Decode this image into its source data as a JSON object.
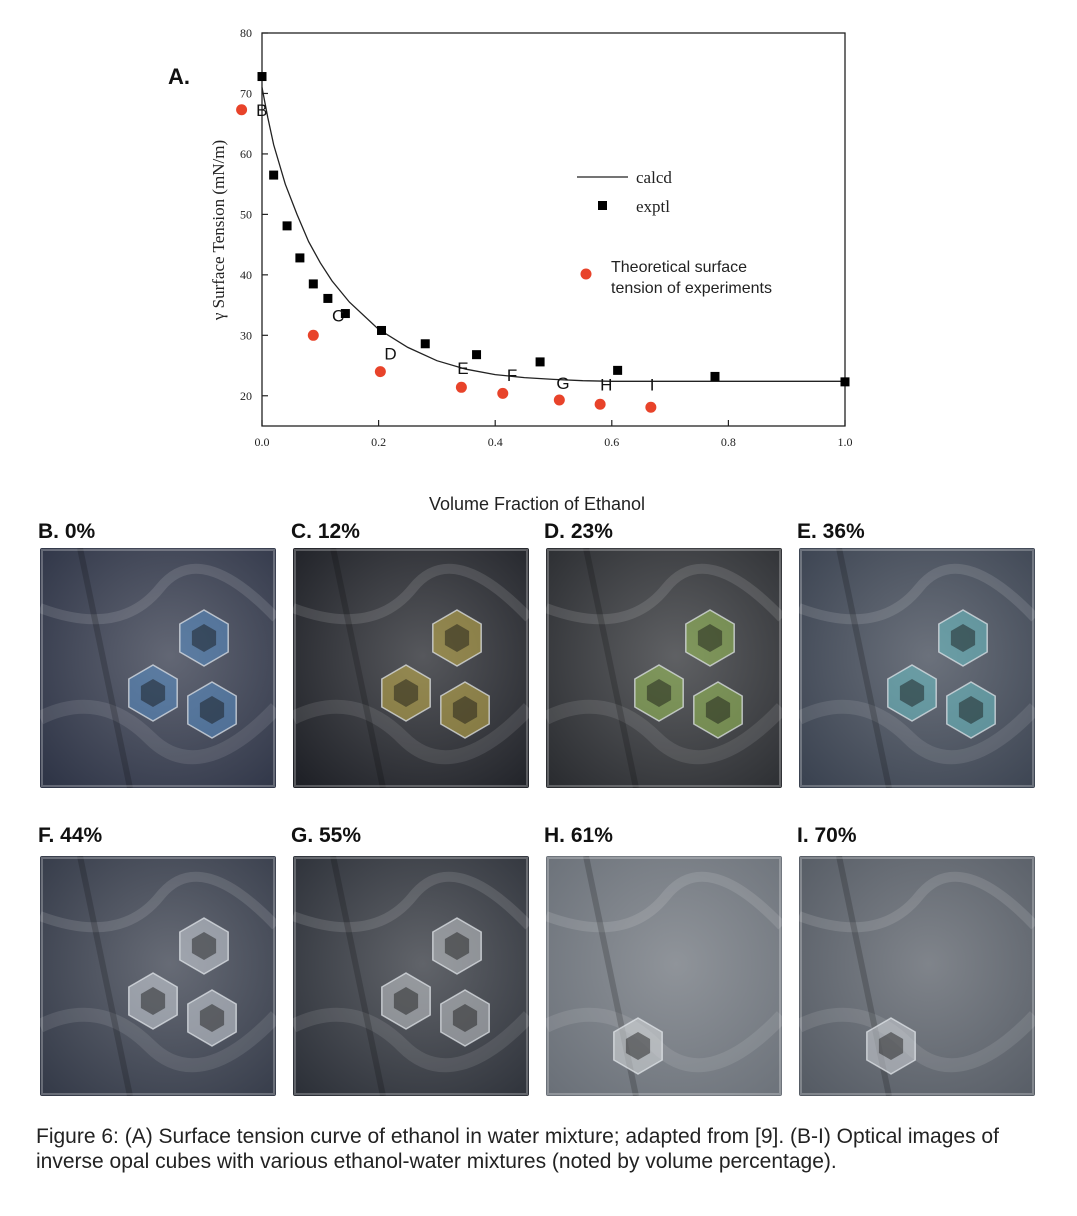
{
  "panel_a_label": "A.",
  "chart_data": {
    "type": "scatter",
    "xlabel": "Volume Fraction of Ethanol",
    "ylabel": "γ Surface Tension (mN/m)",
    "xlim": [
      0,
      1.0
    ],
    "ylim": [
      15,
      80
    ],
    "x_ticks": [
      "0.0",
      "0.2",
      "0.4",
      "0.6",
      "0.8",
      "1.0"
    ],
    "y_ticks": [
      "20",
      "30",
      "40",
      "50",
      "60",
      "70",
      "80"
    ],
    "grid": false,
    "legend_placement": "middle-right",
    "series": [
      {
        "name": "calcd",
        "kind": "line",
        "x": [
          0,
          0.01,
          0.02,
          0.04,
          0.06,
          0.08,
          0.1,
          0.12,
          0.15,
          0.2,
          0.25,
          0.3,
          0.35,
          0.4,
          0.45,
          0.5,
          0.55,
          0.6,
          0.7,
          0.8,
          0.9,
          1.0
        ],
        "y": [
          71.0,
          66.0,
          61.5,
          55.0,
          50.0,
          45.5,
          42.0,
          39.0,
          35.5,
          31.0,
          28.0,
          25.8,
          24.4,
          23.5,
          23.0,
          22.7,
          22.5,
          22.4,
          22.4,
          22.4,
          22.4,
          22.4
        ]
      },
      {
        "name": "exptl",
        "kind": "square",
        "color": "#000000",
        "x": [
          0.0,
          0.02,
          0.043,
          0.065,
          0.088,
          0.113,
          0.143,
          0.205,
          0.28,
          0.368,
          0.477,
          0.61,
          0.777,
          1.0
        ],
        "y": [
          72.8,
          56.5,
          48.1,
          42.8,
          38.5,
          36.1,
          33.6,
          30.8,
          28.6,
          26.8,
          25.6,
          24.2,
          23.2,
          22.3
        ]
      },
      {
        "name": "Theoretical surface tension of experiments",
        "kind": "circle",
        "color": "#e8432a",
        "x": [
          -0.035,
          0.088,
          0.203,
          0.342,
          0.413,
          0.51,
          0.58,
          0.667
        ],
        "y": [
          67.3,
          30.0,
          24.0,
          21.4,
          20.4,
          19.3,
          18.6,
          18.1
        ]
      }
    ],
    "point_labels": [
      {
        "text": "B",
        "x": -0.01,
        "y": 67.3
      },
      {
        "text": "C",
        "x": 0.12,
        "y": 33.3
      },
      {
        "text": "D",
        "x": 0.21,
        "y": 27.0
      },
      {
        "text": "E",
        "x": 0.335,
        "y": 24.6
      },
      {
        "text": "F",
        "x": 0.42,
        "y": 23.4
      },
      {
        "text": "G",
        "x": 0.505,
        "y": 22.1
      },
      {
        "text": "H",
        "x": 0.58,
        "y": 21.9
      },
      {
        "text": "I",
        "x": 0.665,
        "y": 21.9
      }
    ],
    "legend": {
      "calcd": "calcd",
      "exptl": "exptl",
      "theoretical": "Theoretical surface tension of experiments"
    }
  },
  "photos": [
    {
      "label": "B. 0%",
      "icons": 3,
      "tint": "#2e3446",
      "hue": "#5a8fc8"
    },
    {
      "label": "C. 12%",
      "icons": 3,
      "tint": "#1e2026",
      "hue": "#c8b24a"
    },
    {
      "label": "D. 23%",
      "icons": 3,
      "tint": "#2a2c30",
      "hue": "#9cc45a"
    },
    {
      "label": "E. 36%",
      "icons": 3,
      "tint": "#3a4250",
      "hue": "#6ec2c8"
    },
    {
      "label": "F. 44%",
      "icons": 3,
      "tint": "#343a48",
      "hue": "#cfd6dc"
    },
    {
      "label": "G. 55%",
      "icons": 3,
      "tint": "#2c3038",
      "hue": "#c4c8cc"
    },
    {
      "label": "H. 61%",
      "icons": 1,
      "tint": "#6a7078",
      "hue": "#d8dcdf"
    },
    {
      "label": "I. 70%",
      "icons": 1,
      "tint": "#555b64",
      "hue": "#d0d4d8"
    }
  ],
  "caption": "Figure 6: (A) Surface tension curve of ethanol in water mixture; adapted from [9]. (B-I) Optical images of inverse opal cubes with various ethanol-water mixtures (noted by volume percentage)."
}
